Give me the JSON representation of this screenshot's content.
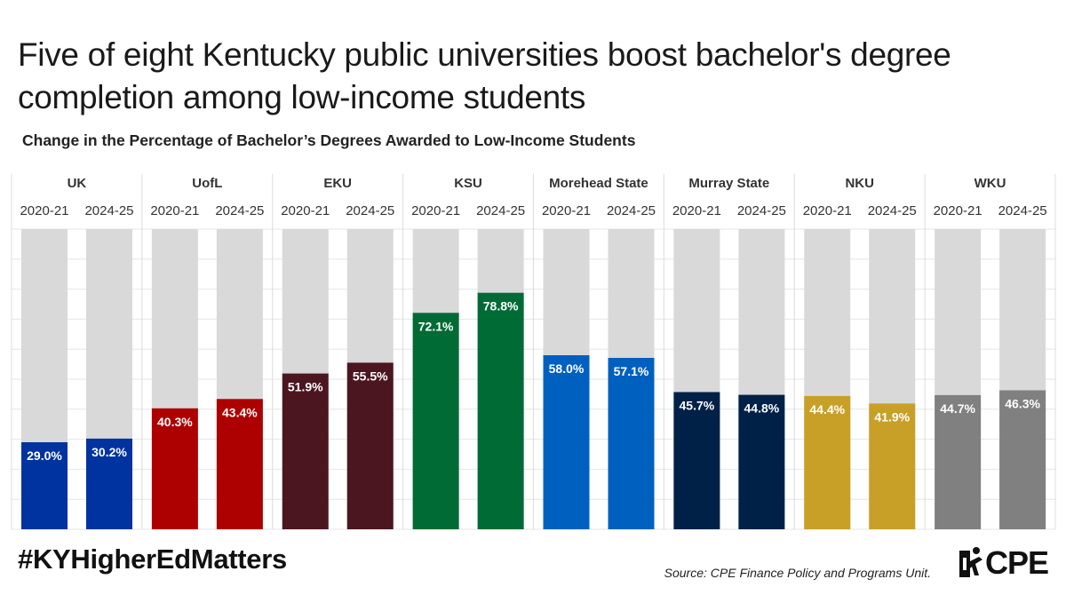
{
  "title": "Five of eight Kentucky public universities boost bachelor's degree completion among low-income students",
  "footer": {
    "hashtag": "#KYHigherEdMatters",
    "source": "Source: CPE Finance Policy and Programs Unit.",
    "logo_text": "CPE"
  },
  "chart_data": {
    "type": "bar",
    "title": "Change in the Percentage of Bachelor’s Degrees Awarded to Low-Income Students",
    "ylim": [
      0,
      100
    ],
    "grid": true,
    "legend": "none",
    "value_suffix": "%",
    "groups": [
      {
        "name": "UK",
        "color": "#0033a0",
        "bars": [
          {
            "year": "2020-21",
            "value": 29.0
          },
          {
            "year": "2024-25",
            "value": 30.2
          }
        ]
      },
      {
        "name": "UofL",
        "color": "#ad0000",
        "bars": [
          {
            "year": "2020-21",
            "value": 40.3
          },
          {
            "year": "2024-25",
            "value": 43.4
          }
        ]
      },
      {
        "name": "EKU",
        "color": "#4b1620",
        "bars": [
          {
            "year": "2020-21",
            "value": 51.9
          },
          {
            "year": "2024-25",
            "value": 55.5
          }
        ]
      },
      {
        "name": "KSU",
        "color": "#006b35",
        "bars": [
          {
            "year": "2020-21",
            "value": 72.1
          },
          {
            "year": "2024-25",
            "value": 78.8
          }
        ]
      },
      {
        "name": "Morehead State",
        "color": "#0060c0",
        "bars": [
          {
            "year": "2020-21",
            "value": 58.0
          },
          {
            "year": "2024-25",
            "value": 57.1
          }
        ]
      },
      {
        "name": "Murray State",
        "color": "#002147",
        "bars": [
          {
            "year": "2020-21",
            "value": 45.7
          },
          {
            "year": "2024-25",
            "value": 44.8
          }
        ]
      },
      {
        "name": "NKU",
        "color": "#c8a028",
        "bars": [
          {
            "year": "2020-21",
            "value": 44.4
          },
          {
            "year": "2024-25",
            "value": 41.9
          }
        ]
      },
      {
        "name": "WKU",
        "color": "#808080",
        "bars": [
          {
            "year": "2020-21",
            "value": 44.7
          },
          {
            "year": "2024-25",
            "value": 46.3
          }
        ]
      }
    ]
  }
}
